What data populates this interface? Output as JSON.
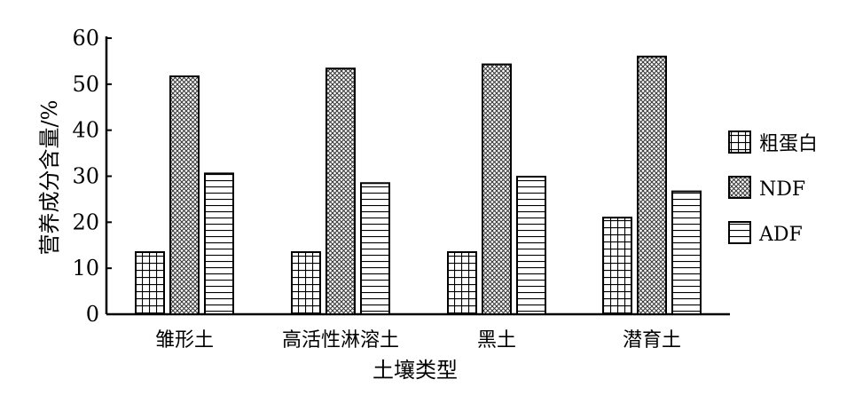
{
  "chart_data": {
    "type": "bar",
    "title": "",
    "xlabel": "土壤类型",
    "ylabel": "营养成分含量/%",
    "ylim": [
      0,
      60
    ],
    "yticks": [
      "0",
      "10",
      "20",
      "30",
      "40",
      "50",
      "60"
    ],
    "categories": [
      "雏形土",
      "高活性淋溶土",
      "黑土",
      "潜育土"
    ],
    "series": [
      {
        "name": "粗蛋白",
        "pattern": "grid",
        "values": [
          13.5,
          13.5,
          13.5,
          21.0
        ]
      },
      {
        "name": "NDF",
        "pattern": "crosshatch-dots",
        "values": [
          51.7,
          53.4,
          54.3,
          56.0
        ]
      },
      {
        "name": "ADF",
        "pattern": "horizontal-lines",
        "values": [
          30.6,
          28.5,
          29.9,
          26.7
        ]
      }
    ],
    "grid": false,
    "legend_position": "right",
    "colors": {
      "stroke": "#000000",
      "background": "#ffffff"
    }
  }
}
